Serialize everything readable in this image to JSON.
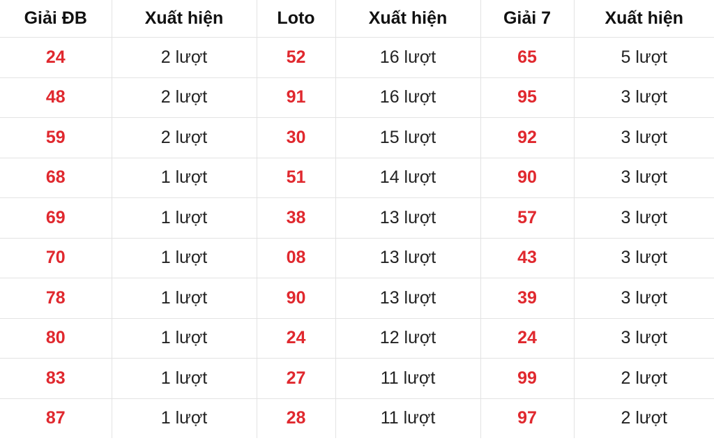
{
  "colors": {
    "number": "#e0282e",
    "text": "#222222",
    "border": "#e3e3e3"
  },
  "headers": [
    "Giải ĐB",
    "Xuất hiện",
    "Loto",
    "Xuất hiện",
    "Giải 7",
    "Xuất hiện"
  ],
  "rows": [
    [
      "24",
      "2 lượt",
      "52",
      "16 lượt",
      "65",
      "5 lượt"
    ],
    [
      "48",
      "2 lượt",
      "91",
      "16 lượt",
      "95",
      "3 lượt"
    ],
    [
      "59",
      "2 lượt",
      "30",
      "15 lượt",
      "92",
      "3 lượt"
    ],
    [
      "68",
      "1 lượt",
      "51",
      "14 lượt",
      "90",
      "3 lượt"
    ],
    [
      "69",
      "1 lượt",
      "38",
      "13 lượt",
      "57",
      "3 lượt"
    ],
    [
      "70",
      "1 lượt",
      "08",
      "13 lượt",
      "43",
      "3 lượt"
    ],
    [
      "78",
      "1 lượt",
      "90",
      "13 lượt",
      "39",
      "3 lượt"
    ],
    [
      "80",
      "1 lượt",
      "24",
      "12 lượt",
      "24",
      "3 lượt"
    ],
    [
      "83",
      "1 lượt",
      "27",
      "11 lượt",
      "99",
      "2 lượt"
    ],
    [
      "87",
      "1 lượt",
      "28",
      "11 lượt",
      "97",
      "2 lượt"
    ]
  ]
}
